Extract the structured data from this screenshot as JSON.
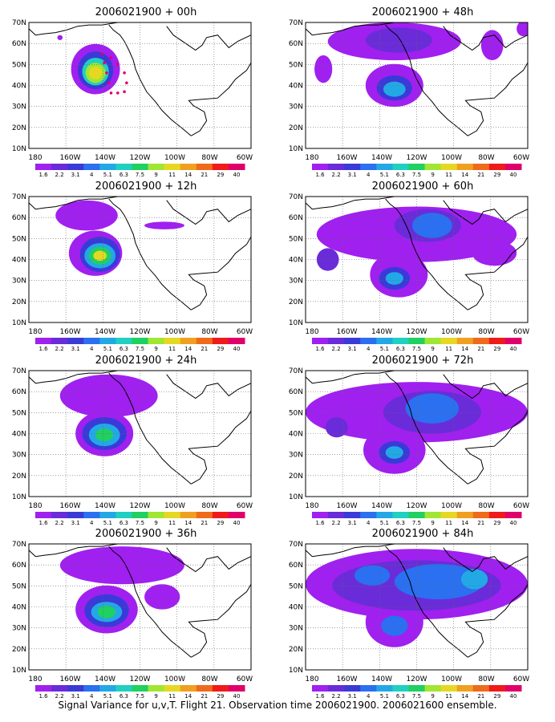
{
  "panels": [
    {
      "title": "2006021900 + 00h"
    },
    {
      "title": "2006021900 + 48h"
    },
    {
      "title": "2006021900 + 12h"
    },
    {
      "title": "2006021900 + 60h"
    },
    {
      "title": "2006021900 + 24h"
    },
    {
      "title": "2006021900 + 72h"
    },
    {
      "title": "2006021900 + 36h"
    },
    {
      "title": "2006021900 + 84h"
    }
  ],
  "axes": {
    "lat_labels": [
      "70N",
      "60N",
      "50N",
      "40N",
      "30N",
      "20N",
      "10N"
    ],
    "lon_labels": [
      "180",
      "160W",
      "140W",
      "120W",
      "100W",
      "80W",
      "60W"
    ]
  },
  "colorbar": {
    "labels": [
      "1.6",
      "2.2",
      "3.1",
      "4",
      "5.1",
      "6.3",
      "7.5",
      "9",
      "11",
      "14",
      "21",
      "29",
      "40"
    ],
    "colors": [
      "#a020f0",
      "#6a2cd8",
      "#3a3ad8",
      "#2a70f0",
      "#23a8e6",
      "#20d0c0",
      "#20d060",
      "#a0e632",
      "#e6d822",
      "#f0a020",
      "#f06a1c",
      "#f01a1a",
      "#e0006a"
    ]
  },
  "caption": "Signal Variance for u,v,T. Flight 21. Observation time 2006021900. 2006021600 ensemble."
}
